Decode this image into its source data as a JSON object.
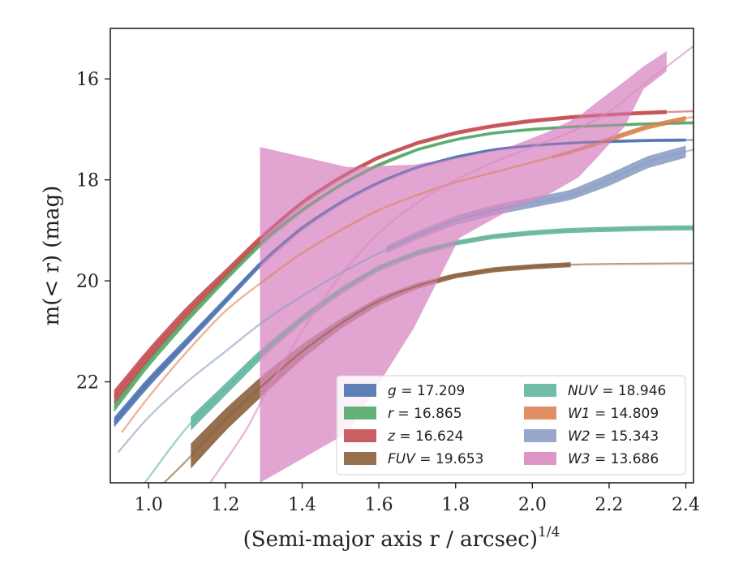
{
  "chart_data": {
    "type": "line",
    "xlabel": "(Semi-major axis r / arcsec)",
    "xlabel_exponent": "1/4",
    "ylabel": "m(< r) (mag)",
    "xlim": [
      0.9,
      2.42
    ],
    "ylim": [
      24.0,
      15.0
    ],
    "x_ticks": [
      1.0,
      1.2,
      1.4,
      1.6,
      1.8,
      2.0,
      2.2,
      2.4
    ],
    "x_tick_labels": [
      "1.0",
      "1.2",
      "1.4",
      "1.6",
      "1.8",
      "2.0",
      "2.2",
      "2.4"
    ],
    "y_ticks": [
      16,
      18,
      20,
      22
    ],
    "y_tick_labels": [
      "16",
      "18",
      "20",
      "22"
    ],
    "grid": false,
    "legend_position": "lower-right",
    "series": [
      {
        "name": "g",
        "legend_value": "17.209",
        "color": "#4c72b0",
        "x": [
          0.91,
          1.0,
          1.1,
          1.2,
          1.3,
          1.4,
          1.5,
          1.6,
          1.7,
          1.8,
          1.9,
          2.0,
          2.1,
          2.2,
          2.3,
          2.42
        ],
        "y": [
          22.8,
          22.0,
          21.2,
          20.4,
          19.6,
          18.95,
          18.45,
          18.05,
          17.75,
          17.55,
          17.4,
          17.32,
          17.27,
          17.24,
          17.22,
          17.21
        ],
        "band": [
          0.1,
          0.1,
          0.08,
          0.07,
          0.06,
          0.05,
          0.04,
          0.04,
          0.03,
          0.03,
          0.03,
          0.03,
          0.03,
          0.03,
          0.03,
          0.03
        ],
        "band_end": 2.4
      },
      {
        "name": "r",
        "legend_value": "16.865",
        "color": "#55a868",
        "x": [
          0.91,
          1.0,
          1.1,
          1.2,
          1.3,
          1.4,
          1.5,
          1.6,
          1.7,
          1.8,
          1.9,
          2.0,
          2.1,
          2.2,
          2.3,
          2.42
        ],
        "y": [
          22.5,
          21.6,
          20.75,
          19.95,
          19.2,
          18.6,
          18.1,
          17.7,
          17.4,
          17.2,
          17.07,
          17.0,
          16.95,
          16.92,
          16.89,
          16.87
        ],
        "band": [
          0.1,
          0.1,
          0.08,
          0.07,
          0.06,
          0.05,
          0.04,
          0.04,
          0.03,
          0.03,
          0.03,
          0.03,
          0.03,
          0.03,
          0.03,
          0.03
        ],
        "band_end": 2.42
      },
      {
        "name": "z",
        "legend_value": "16.624",
        "color": "#c44e52",
        "x": [
          0.91,
          1.0,
          1.1,
          1.2,
          1.3,
          1.4,
          1.5,
          1.6,
          1.7,
          1.8,
          1.9,
          2.0,
          2.1,
          2.2,
          2.3,
          2.42
        ],
        "y": [
          22.3,
          21.45,
          20.6,
          19.85,
          19.1,
          18.45,
          17.95,
          17.55,
          17.27,
          17.07,
          16.93,
          16.83,
          16.76,
          16.71,
          16.67,
          16.64
        ],
        "band": [
          0.14,
          0.12,
          0.1,
          0.08,
          0.07,
          0.06,
          0.05,
          0.04,
          0.04,
          0.04,
          0.04,
          0.04,
          0.04,
          0.04,
          0.04,
          0.04
        ],
        "band_end": 2.35
      },
      {
        "name": "FUV",
        "legend_value": "19.653",
        "color": "#8c613c",
        "x": [
          1.04,
          1.1,
          1.2,
          1.3,
          1.4,
          1.5,
          1.6,
          1.7,
          1.8,
          1.9,
          2.0,
          2.1,
          2.2,
          2.3,
          2.42
        ],
        "y": [
          24.0,
          23.55,
          22.75,
          22.05,
          21.4,
          20.85,
          20.4,
          20.1,
          19.9,
          19.78,
          19.72,
          19.68,
          19.665,
          19.66,
          19.655
        ],
        "band": [
          0.25,
          0.25,
          0.22,
          0.2,
          0.15,
          0.1,
          0.08,
          0.06,
          0.05,
          0.05,
          0.05,
          0.05,
          0.05,
          0.05,
          0.05
        ],
        "band_start": 1.11,
        "band_end": 2.1
      },
      {
        "name": "NUV",
        "legend_value": "18.946",
        "color": "#64b5a0",
        "x": [
          0.99,
          1.1,
          1.2,
          1.3,
          1.4,
          1.5,
          1.6,
          1.7,
          1.8,
          1.9,
          2.0,
          2.1,
          2.2,
          2.3,
          2.42
        ],
        "y": [
          24.0,
          22.9,
          22.15,
          21.4,
          20.75,
          20.2,
          19.75,
          19.45,
          19.25,
          19.12,
          19.05,
          19.0,
          18.98,
          18.96,
          18.95
        ],
        "band": [
          0.14,
          0.14,
          0.12,
          0.1,
          0.08,
          0.07,
          0.06,
          0.06,
          0.05,
          0.05,
          0.05,
          0.05,
          0.05,
          0.05,
          0.05
        ],
        "band_start": 1.11,
        "band_end": 2.42
      },
      {
        "name": "W1",
        "legend_value": "14.809",
        "color": "#dd8452",
        "x": [
          0.93,
          1.0,
          1.1,
          1.2,
          1.3,
          1.4,
          1.5,
          1.6,
          1.7,
          1.8,
          1.9,
          2.0,
          2.1,
          2.2,
          2.3,
          2.42
        ],
        "y": [
          23.0,
          22.3,
          21.4,
          20.6,
          20.0,
          19.45,
          19.0,
          18.6,
          18.3,
          18.05,
          17.85,
          17.65,
          17.45,
          17.2,
          16.95,
          16.75
        ],
        "band": [
          0.02,
          0.02,
          0.02,
          0.02,
          0.02,
          0.02,
          0.02,
          0.02,
          0.02,
          0.02,
          0.02,
          0.03,
          0.04,
          0.05,
          0.05,
          0.05
        ],
        "band_start": 2.05,
        "band_end": 2.4
      },
      {
        "name": "W2",
        "legend_value": "15.343",
        "color": "#8c9fc4",
        "x": [
          0.92,
          1.0,
          1.1,
          1.2,
          1.3,
          1.4,
          1.5,
          1.6,
          1.7,
          1.8,
          1.9,
          2.0,
          2.1,
          2.2,
          2.3,
          2.42
        ],
        "y": [
          23.4,
          22.7,
          22.0,
          21.4,
          20.8,
          20.3,
          19.85,
          19.45,
          19.1,
          18.8,
          18.6,
          18.45,
          18.3,
          18.0,
          17.65,
          17.4
        ],
        "band": [
          0.05,
          0.05,
          0.05,
          0.05,
          0.05,
          0.05,
          0.06,
          0.07,
          0.08,
          0.09,
          0.1,
          0.1,
          0.1,
          0.12,
          0.12,
          0.12
        ],
        "band_start": 1.62,
        "band_end": 2.4
      },
      {
        "name": "W3",
        "legend_value": "13.686",
        "color": "#da8bc3",
        "x": [
          1.16,
          1.25,
          1.3,
          1.4,
          1.5,
          1.6,
          1.7,
          1.8,
          1.9,
          2.0,
          2.1,
          2.2,
          2.3,
          2.42
        ],
        "y": [
          24.0,
          23.0,
          22.3,
          21.0,
          19.9,
          19.05,
          18.45,
          18.0,
          17.65,
          17.35,
          17.05,
          16.65,
          16.05,
          15.35
        ],
        "band_x": [
          1.29,
          1.29,
          1.52,
          1.69,
          1.81,
          1.94,
          2.04,
          2.12,
          2.17,
          2.24,
          2.29,
          2.35
        ],
        "band_upper": [
          17.35,
          17.35,
          17.75,
          17.7,
          17.55,
          17.35,
          17.05,
          16.75,
          16.45,
          16.05,
          15.75,
          15.45
        ],
        "band_lower": [
          24.0,
          24.0,
          23.0,
          20.95,
          19.15,
          18.6,
          18.3,
          17.95,
          17.55,
          16.95,
          16.2,
          15.85
        ]
      }
    ]
  }
}
